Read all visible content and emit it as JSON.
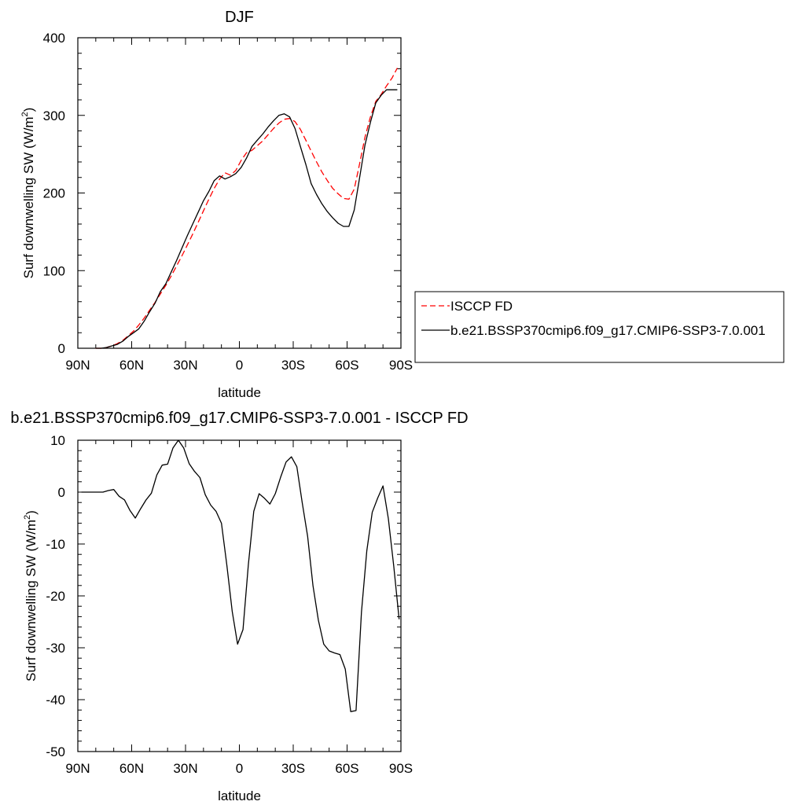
{
  "chart_data": [
    {
      "type": "line",
      "title": "DJF",
      "xlabel": "latitude",
      "ylabel": "Surf downwelling SW (W/m2)",
      "ylabel_main": "Surf downwelling SW (W/m",
      "ylabel_sup": "2",
      "ylabel_tail": ")",
      "xlim": [
        -90,
        90
      ],
      "ylim": [
        0,
        400
      ],
      "xticks": [
        {
          "value": -90,
          "label": "90N"
        },
        {
          "value": -60,
          "label": "60N"
        },
        {
          "value": -30,
          "label": "30N"
        },
        {
          "value": 0,
          "label": "0"
        },
        {
          "value": 30,
          "label": "30S"
        },
        {
          "value": 60,
          "label": "60S"
        },
        {
          "value": 90,
          "label": "90S"
        }
      ],
      "yticks": [
        {
          "value": 0,
          "label": "0"
        },
        {
          "value": 100,
          "label": "100"
        },
        {
          "value": 200,
          "label": "200"
        },
        {
          "value": 300,
          "label": "300"
        },
        {
          "value": 400,
          "label": "400"
        }
      ],
      "legend_position": "right",
      "series": [
        {
          "name": "ISCCP FD",
          "color": "#ff0000",
          "dash": "dashed",
          "x": [
            -80,
            -77,
            -74,
            -71,
            -68,
            -65,
            -62,
            -59,
            -56,
            -53,
            -50,
            -47,
            -44,
            -41,
            -38,
            -35,
            -32,
            -29,
            -26,
            -23,
            -20,
            -17,
            -14,
            -11,
            -8,
            -5,
            -2,
            1,
            4,
            7,
            10,
            13,
            16,
            19,
            22,
            25,
            28,
            31,
            34,
            37,
            40,
            43,
            46,
            49,
            52,
            55,
            58,
            61,
            64,
            67,
            70,
            73,
            76,
            79,
            82,
            85,
            88
          ],
          "y": [
            0,
            0,
            1,
            3,
            6,
            10,
            16,
            22,
            30,
            39,
            49,
            59,
            70,
            81,
            93,
            106,
            119,
            133,
            147,
            162,
            177,
            192,
            206,
            218,
            226,
            223,
            229,
            242,
            252,
            255,
            261,
            267,
            275,
            283,
            290,
            295,
            296,
            292,
            282,
            268,
            254,
            240,
            227,
            216,
            206,
            199,
            193,
            192,
            205,
            238,
            272,
            298,
            318,
            327,
            338,
            348,
            361
          ]
        },
        {
          "name": "b.e21.BSSP370cmip6.f09_g17.CMIP6-SSP3-7.0.001",
          "color": "#000000",
          "dash": "solid",
          "x": [
            -80,
            -77,
            -74,
            -71,
            -68,
            -65,
            -62,
            -59,
            -56,
            -53,
            -50,
            -47,
            -44,
            -41,
            -38,
            -35,
            -32,
            -29,
            -26,
            -23,
            -20,
            -17,
            -14,
            -11,
            -8,
            -5,
            -2,
            1,
            4,
            7,
            10,
            13,
            16,
            19,
            22,
            25,
            28,
            31,
            34,
            37,
            40,
            43,
            46,
            49,
            52,
            55,
            58,
            61,
            64,
            67,
            70,
            73,
            76,
            79,
            82,
            85,
            88
          ],
          "y": [
            0,
            0,
            1,
            3,
            5,
            9,
            15,
            20,
            25,
            35,
            47,
            58,
            73,
            83,
            98,
            113,
            129,
            145,
            160,
            175,
            190,
            202,
            216,
            222,
            218,
            221,
            225,
            233,
            245,
            260,
            268,
            276,
            285,
            293,
            300,
            302,
            298,
            283,
            260,
            237,
            212,
            198,
            186,
            176,
            168,
            161,
            157,
            157,
            178,
            220,
            262,
            291,
            316,
            326,
            333,
            333,
            333
          ]
        }
      ]
    },
    {
      "type": "line",
      "title": "b.e21.BSSP370cmip6.f09_g17.CMIP6-SSP3-7.0.001 - ISCCP FD",
      "xlabel": "latitude",
      "ylabel": "Surf downwelling SW (W/m2)",
      "ylabel_main": "Surf downwelling SW (W/m",
      "ylabel_sup": "2",
      "ylabel_tail": ")",
      "xlim": [
        -90,
        90
      ],
      "ylim": [
        -50,
        10
      ],
      "xticks": [
        {
          "value": -90,
          "label": "90N"
        },
        {
          "value": -60,
          "label": "60N"
        },
        {
          "value": -30,
          "label": "30N"
        },
        {
          "value": 0,
          "label": "0"
        },
        {
          "value": 30,
          "label": "30S"
        },
        {
          "value": 60,
          "label": "60S"
        },
        {
          "value": 90,
          "label": "90S"
        }
      ],
      "yticks": [
        {
          "value": 10,
          "label": "10"
        },
        {
          "value": 0,
          "label": "0"
        },
        {
          "value": -10,
          "label": "-10"
        },
        {
          "value": -20,
          "label": "-20"
        },
        {
          "value": -30,
          "label": "-30"
        },
        {
          "value": -40,
          "label": "-40"
        },
        {
          "value": -50,
          "label": "-50"
        }
      ],
      "series": [
        {
          "color": "#000000",
          "dash": "solid",
          "x": [
            -88,
            -85,
            -82,
            -79,
            -76,
            -73,
            -70,
            -67,
            -64,
            -61,
            -58,
            -55,
            -52,
            -49,
            -46,
            -43,
            -40,
            -37,
            -34,
            -31,
            -28,
            -25,
            -22,
            -19,
            -16,
            -13,
            -10,
            -7,
            -4,
            -1,
            2,
            5,
            8,
            11,
            14,
            17,
            20,
            23,
            26,
            29,
            32,
            35,
            38,
            41,
            44,
            47,
            50,
            53,
            56,
            59,
            62,
            65,
            68,
            71,
            74,
            77,
            80,
            83,
            86,
            89
          ],
          "y": [
            0,
            0,
            0,
            0,
            0,
            0.3,
            0.5,
            -0.8,
            -1.5,
            -3.5,
            -5,
            -3.2,
            -1.5,
            -0.2,
            3.3,
            5.2,
            5.4,
            8.5,
            10,
            8.5,
            5.5,
            4,
            2.8,
            -0.5,
            -2.5,
            -3.7,
            -6,
            -14,
            -23,
            -29.3,
            -26.5,
            -14,
            -3.7,
            -0.3,
            -1.2,
            -2.3,
            -0.3,
            2.9,
            5.8,
            6.8,
            4.9,
            -2,
            -8.5,
            -18,
            -24.7,
            -29.3,
            -30.6,
            -31,
            -31.3,
            -34.1,
            -42.3,
            -42.1,
            -23.1,
            -11.3,
            -3.9,
            -1.2,
            1.2,
            -5.1,
            -14.3,
            -24.5
          ]
        }
      ]
    }
  ]
}
